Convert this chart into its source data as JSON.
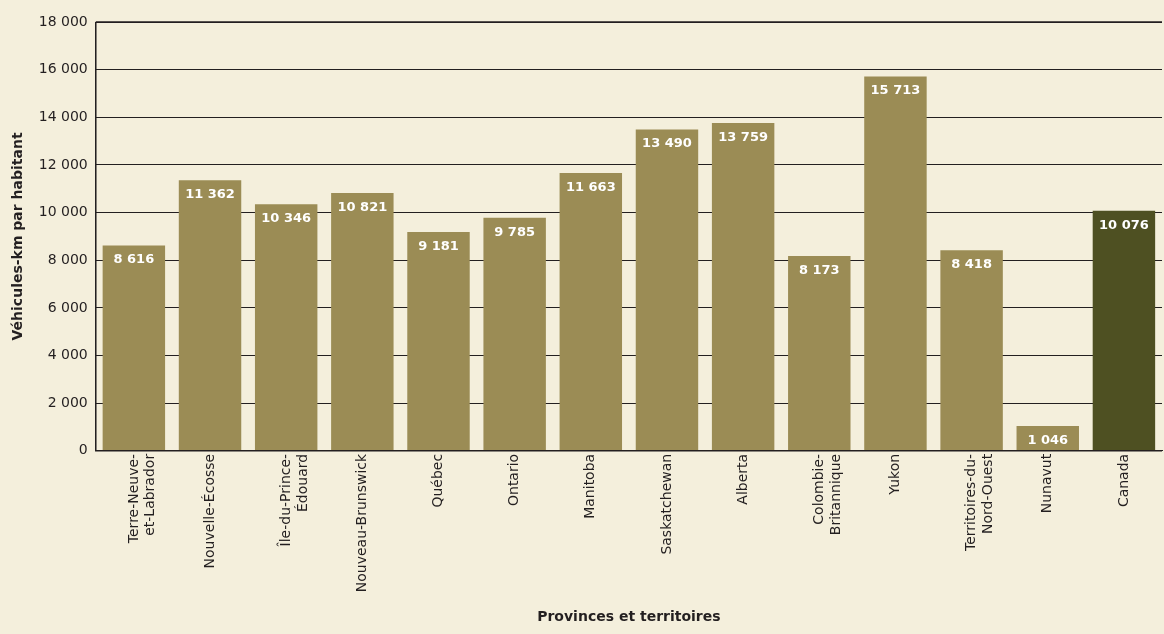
{
  "chart_data": {
    "type": "bar",
    "xlabel": "Provinces et territoires",
    "ylabel": "Véhicules-km par habitant",
    "categories": [
      "Terre-Neuve-\net-Labrador",
      "Nouvelle-Écosse",
      "Île-du-Prince-\nÉdouard",
      "Nouveau-Brunswick",
      "Québec",
      "Ontario",
      "Manitoba",
      "Saskatchewan",
      "Alberta",
      "Colombie-\nBritannique",
      "Yukon",
      "Territoires-du-\nNord-Ouest",
      "Nunavut",
      "Canada"
    ],
    "values": [
      8616,
      11362,
      10346,
      10821,
      9181,
      9785,
      11663,
      13490,
      13759,
      8173,
      15713,
      8418,
      1046,
      10076
    ],
    "colors": [
      "#9b8c55",
      "#9b8c55",
      "#9b8c55",
      "#9b8c55",
      "#9b8c55",
      "#9b8c55",
      "#9b8c55",
      "#9b8c55",
      "#9b8c55",
      "#9b8c55",
      "#9b8c55",
      "#9b8c55",
      "#9b8c55",
      "#4e5022"
    ],
    "value_labels": [
      "8 616",
      "11 362",
      "10 346",
      "10 821",
      "9 181",
      "9 785",
      "11 663",
      "13 490",
      "13 759",
      "8 173",
      "15 713",
      "8 418",
      "1 046",
      "10 076"
    ],
    "ylim": [
      0,
      18000
    ],
    "yticks": [
      0,
      {
        "value": 2000,
        "label": "2 000"
      },
      {
        "value": 4000,
        "label": "4 000"
      },
      {
        "value": 6000,
        "label": "6 000"
      },
      {
        "value": 8000,
        "label": "8 000"
      },
      {
        "value": 10000,
        "label": "10 000"
      },
      {
        "value": 12000,
        "label": "12 000"
      },
      {
        "value": 14000,
        "label": "14 000"
      },
      {
        "value": 16000,
        "label": "16 000"
      },
      {
        "value": 18000,
        "label": "18 000"
      }
    ],
    "grid": "y",
    "legend": false
  }
}
